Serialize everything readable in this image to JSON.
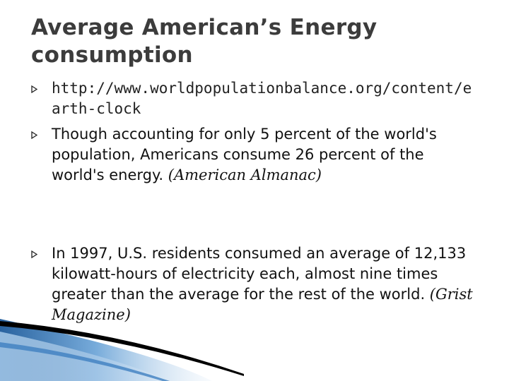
{
  "slide": {
    "title": "Average American’s Energy consumption",
    "bullets": [
      {
        "text": "http://www.worldpopulationbalance.org/content/earth-clock",
        "citation": ""
      },
      {
        "text": "Though accounting for only 5 percent of the world's population, Americans consume 26 percent of the world's energy. ",
        "citation": "(American Almanac)"
      },
      {
        "text": "In 1997, U.S. residents consumed an average of 12,133 kilowatt-hours of electricity each, almost nine times greater than the average for the rest of the world. ",
        "citation": "(Grist Magazine)"
      }
    ],
    "bullet_icon": "hollow-arrow-bullet-icon",
    "accent_colors": [
      "#1d5a9a",
      "#9fc4e6",
      "#000000"
    ]
  }
}
